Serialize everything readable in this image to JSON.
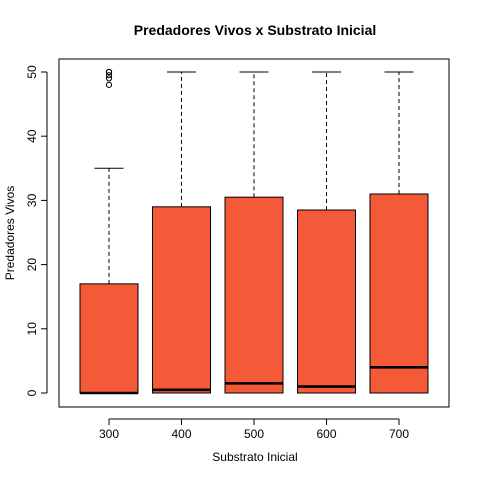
{
  "chart_data": {
    "type": "boxplot",
    "title": "Predadores Vivos x Substrato Inicial",
    "xlabel": "Substrato Inicial",
    "ylabel": "Predadores Vivos",
    "categories": [
      "300",
      "400",
      "500",
      "600",
      "700"
    ],
    "ylim": [
      0,
      50
    ],
    "y_ticks": [
      0,
      10,
      20,
      30,
      40,
      50
    ],
    "grid": false,
    "box_color": "#f55a38",
    "boxes": [
      {
        "category": "300",
        "whisker_low": 0,
        "q1": 0,
        "median": 0,
        "q3": 17,
        "whisker_high": 35,
        "outliers": [
          48,
          49,
          49.5,
          50,
          50
        ]
      },
      {
        "category": "400",
        "whisker_low": 0,
        "q1": 0,
        "median": 0.5,
        "q3": 29,
        "whisker_high": 50,
        "outliers": []
      },
      {
        "category": "500",
        "whisker_low": 0,
        "q1": 0,
        "median": 1.5,
        "q3": 30.5,
        "whisker_high": 50,
        "outliers": []
      },
      {
        "category": "600",
        "whisker_low": 0,
        "q1": 0,
        "median": 1,
        "q3": 28.5,
        "whisker_high": 50,
        "outliers": []
      },
      {
        "category": "700",
        "whisker_low": 0,
        "q1": 0,
        "median": 4,
        "q3": 31,
        "whisker_high": 50,
        "outliers": []
      }
    ]
  }
}
